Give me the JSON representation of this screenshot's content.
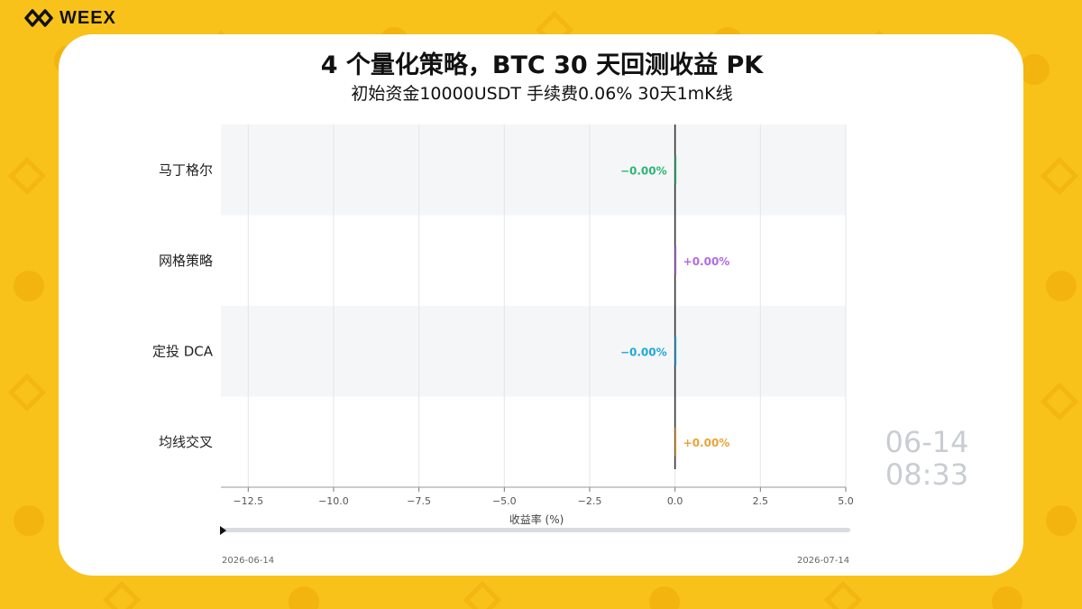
{
  "brand": {
    "name": "WEEX"
  },
  "header": {
    "title": "4 个量化策略，BTC 30 天回测收益 PK",
    "subtitle": "初始资金10000USDT 手续费0.06% 30天1mK线"
  },
  "timeline": {
    "start_label": "2026-06-14",
    "end_label": "2026-07-14",
    "progress": 0.0
  },
  "stamp": {
    "date": "06-14",
    "time": "08:33"
  },
  "chart_data": {
    "type": "bar",
    "orientation": "horizontal",
    "categories": [
      "马丁格尔",
      "网格策略",
      "定投 DCA",
      "均线交叉"
    ],
    "values": [
      -0.0,
      0.0,
      -0.0,
      0.0
    ],
    "value_labels": [
      "−0.00%",
      "+0.00%",
      "−0.00%",
      "+0.00%"
    ],
    "colors": [
      "#2bb673",
      "#b26be0",
      "#1fa8d8",
      "#e8a33a"
    ],
    "title": "",
    "xlabel": "收益率 (%)",
    "ylabel": "",
    "xlim": [
      -13.3,
      5.0
    ],
    "xticks": [
      -12.5,
      -10.0,
      -7.5,
      -5.0,
      -2.5,
      0.0,
      2.5,
      5.0
    ],
    "xtick_labels": [
      "−12.5",
      "−10.0",
      "−7.5",
      "−5.0",
      "−2.5",
      "0.0",
      "2.5",
      "5.0"
    ],
    "grid": true
  }
}
